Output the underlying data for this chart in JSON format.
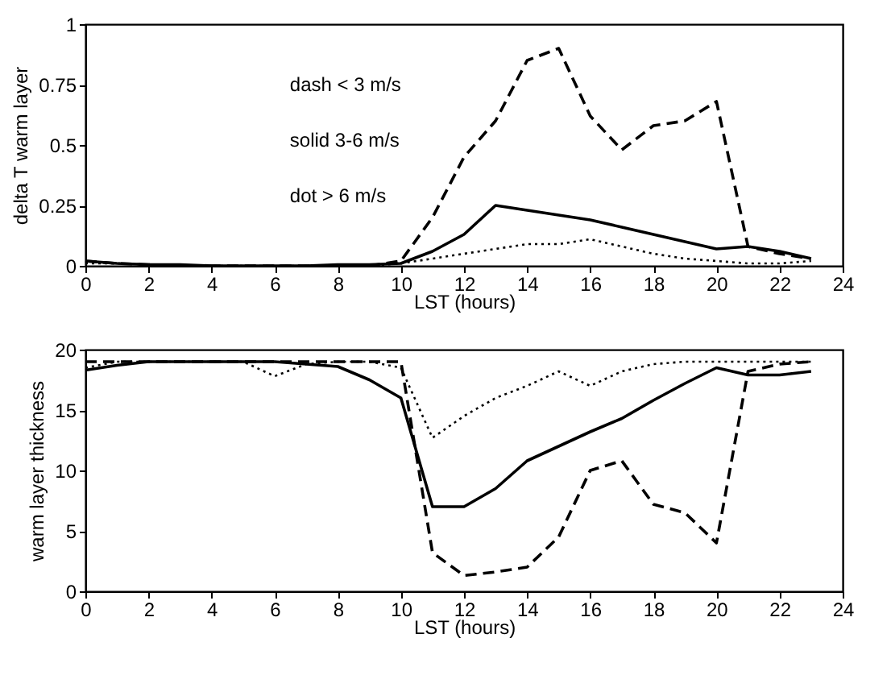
{
  "chart_data": [
    {
      "type": "line",
      "xlabel": "LST  (hours)",
      "ylabel": "delta T warm layer",
      "x": [
        0,
        1,
        2,
        3,
        4,
        5,
        6,
        7,
        8,
        9,
        10,
        11,
        12,
        13,
        14,
        15,
        16,
        17,
        18,
        19,
        20,
        21,
        22,
        23
      ],
      "series": [
        {
          "color": "#000000",
          "line_style": "dashed",
          "values": [
            0.02,
            0.01,
            0.005,
            0,
            0,
            0,
            0,
            0,
            0,
            0,
            0.02,
            0.2,
            0.45,
            0.6,
            0.85,
            0.9,
            0.62,
            0.48,
            0.58,
            0.6,
            0.68,
            0.08,
            0.05,
            0.03
          ]
        },
        {
          "color": "#000000",
          "line_style": "solid",
          "values": [
            0.02,
            0.01,
            0.005,
            0.005,
            0,
            0,
            0,
            0,
            0.005,
            0.005,
            0.01,
            0.06,
            0.13,
            0.25,
            0.23,
            0.21,
            0.19,
            0.16,
            0.13,
            0.1,
            0.07,
            0.08,
            0.06,
            0.03
          ]
        },
        {
          "color": "#000000",
          "line_style": "dotted",
          "values": [
            0.01,
            0.01,
            0.005,
            0,
            0,
            0,
            0,
            0,
            0,
            0,
            0.01,
            0.03,
            0.05,
            0.07,
            0.09,
            0.09,
            0.11,
            0.08,
            0.05,
            0.03,
            0.02,
            0.01,
            0.01,
            0.02
          ]
        }
      ],
      "xlim": [
        0,
        24
      ],
      "xticks": [
        0,
        2,
        4,
        6,
        8,
        10,
        12,
        14,
        16,
        18,
        20,
        22,
        24
      ],
      "ylim": [
        0,
        1
      ],
      "yticks": [
        0,
        0.25,
        0.5,
        0.75,
        1
      ],
      "annotations": [
        "dash  < 3 m/s",
        "solid  3-6 m/s",
        "dot  > 6 m/s"
      ],
      "grid": false
    },
    {
      "type": "line",
      "xlabel": "LST  (hours)",
      "ylabel": "warm layer thickness",
      "x": [
        0,
        1,
        2,
        3,
        4,
        5,
        6,
        7,
        8,
        9,
        10,
        11,
        12,
        13,
        14,
        15,
        16,
        17,
        18,
        19,
        20,
        21,
        22,
        23
      ],
      "series": [
        {
          "color": "#000000",
          "line_style": "dashed",
          "values": [
            19,
            19,
            19,
            19,
            19,
            19,
            19,
            19,
            19,
            19,
            19,
            3.2,
            1.3,
            1.6,
            2,
            4.5,
            10,
            10.8,
            7.2,
            6.5,
            4,
            18.2,
            18.8,
            19
          ]
        },
        {
          "color": "#000000",
          "line_style": "solid",
          "values": [
            18.3,
            18.7,
            19,
            19,
            19,
            19,
            19,
            18.8,
            18.6,
            17.5,
            16,
            7,
            7,
            8.5,
            10.8,
            12,
            13.2,
            14.3,
            15.8,
            17.2,
            18.5,
            17.9,
            17.9,
            18.2
          ]
        },
        {
          "color": "#000000",
          "line_style": "dotted",
          "values": [
            18.5,
            19,
            19,
            19,
            19,
            19,
            17.8,
            18.8,
            19,
            19,
            18.5,
            12.7,
            14.5,
            16,
            17,
            18.2,
            17,
            18.2,
            18.8,
            19,
            19,
            19,
            19,
            19
          ]
        }
      ],
      "xlim": [
        0,
        24
      ],
      "xticks": [
        0,
        2,
        4,
        6,
        8,
        10,
        12,
        14,
        16,
        18,
        20,
        22,
        24
      ],
      "ylim": [
        0,
        20
      ],
      "yticks": [
        0,
        5,
        10,
        15,
        20
      ],
      "grid": false
    }
  ]
}
